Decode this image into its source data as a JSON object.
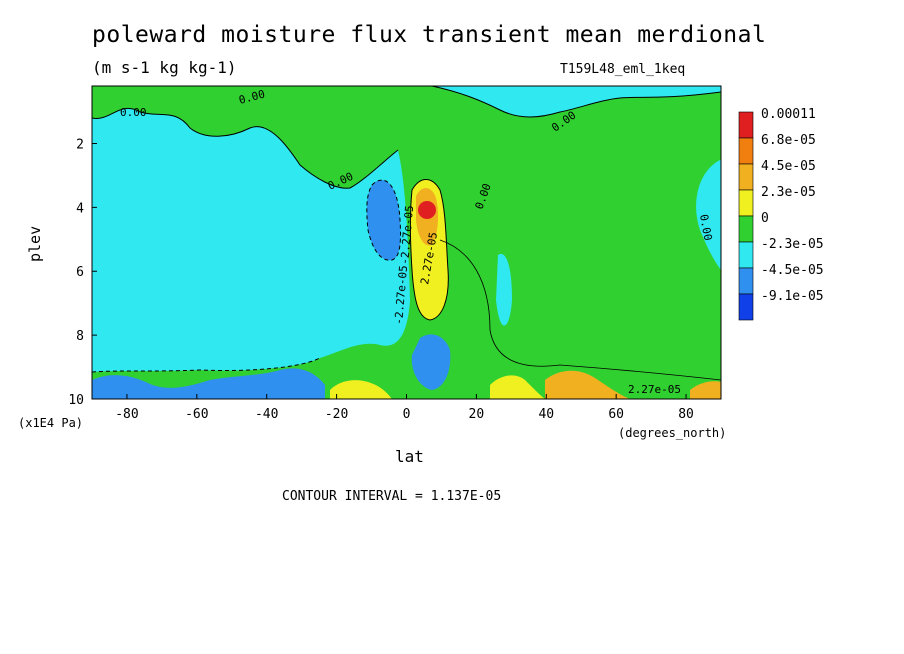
{
  "title": "poleward moisture flux transient mean merdional",
  "subtitle": "(m s-1 kg kg-1)",
  "run_label": "T159L48_eml_1keq",
  "footer": "CONTOUR INTERVAL = 1.137E-05",
  "chart_data": {
    "type": "heatmap",
    "title": "poleward moisture flux transient mean merdional",
    "xlabel": "lat",
    "ylabel": "plev",
    "x_units": "(degrees_north)",
    "y_units": "(x1E4 Pa)",
    "xlim": [
      -90,
      90
    ],
    "ylim": [
      0.2,
      10
    ],
    "y_inverted": true,
    "x_ticks": [
      "-80",
      "-60",
      "-40",
      "-20",
      "0",
      "20",
      "40",
      "60",
      "80"
    ],
    "y_ticks": [
      "2",
      "4",
      "6",
      "8",
      "10"
    ],
    "contour_interval": "1.137E-05",
    "contour_labels": [
      "0.00",
      "0.00",
      "0.00",
      "0.00",
      "0.00",
      "0.00",
      "2.27e-05",
      "2.27e-05",
      "-2.27e-05",
      "-2.27e-05"
    ],
    "legend_levels": [
      "0.00011",
      "6.8e-05",
      "4.5e-05",
      "2.3e-05",
      "0",
      "-2.3e-05",
      "-4.5e-05",
      "-9.1e-05"
    ],
    "legend_colors": [
      "#e02020",
      "#f07f10",
      "#f0b020",
      "#f0f020",
      "#30d030",
      "#30e8f0",
      "#3090f0",
      "#1040e8"
    ],
    "features": [
      {
        "name": "positive maximum",
        "lat": 6,
        "plev": 4.0,
        "value": 0.00011
      },
      {
        "name": "positive tongue",
        "lat": [
          3,
          12
        ],
        "plev": [
          3.2,
          7.5
        ],
        "value": 4.5e-05
      },
      {
        "name": "negative column",
        "lat": [
          -10,
          -2
        ],
        "plev": [
          3.0,
          7.5
        ],
        "value": -4.5e-05
      },
      {
        "name": "surface positive band",
        "lat": [
          -22,
          0
        ],
        "plev": [
          9.2,
          10
        ],
        "value": 2.3e-05
      },
      {
        "name": "surface positive band",
        "lat": [
          25,
          90
        ],
        "plev": [
          9.3,
          10
        ],
        "value": 4.5e-05
      },
      {
        "name": "surface negative band",
        "lat": [
          -90,
          -20
        ],
        "plev": [
          9.3,
          10
        ],
        "value": -4.5e-05
      }
    ],
    "colors": {
      "positive_max": "#e02020",
      "positive": "#f0f020",
      "zero": "#30d030",
      "negative": "#30e8f0",
      "negative_strong": "#1040e8"
    }
  }
}
